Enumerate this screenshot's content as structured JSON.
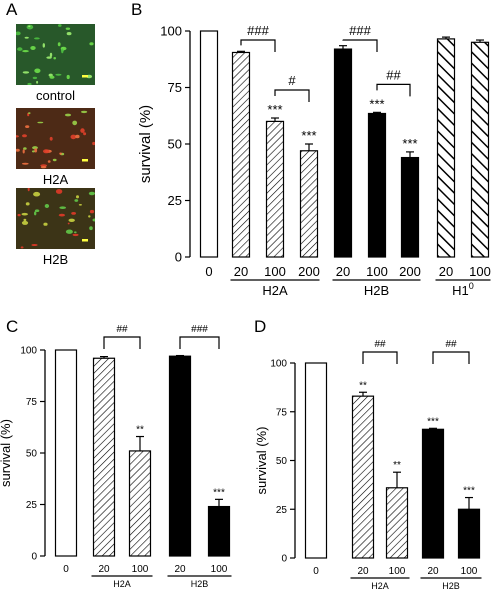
{
  "panel_letters": {
    "a": "A",
    "b": "B",
    "c": "C",
    "d": "D"
  },
  "micrographs": [
    {
      "label": "control",
      "tint": "#28582a"
    },
    {
      "label": "H2A",
      "tint": "#4d2a16"
    },
    {
      "label": "H2B",
      "tint": "#3c3417"
    }
  ],
  "colors": {
    "axis": "#000000",
    "open_bar": "#ffffff",
    "solid_bar": "#000000",
    "hatch": "#000000"
  },
  "chart_data": [
    {
      "panel": "B",
      "type": "bar",
      "ylabel": "survival (%)",
      "ylim": [
        0,
        100
      ],
      "yticks": [
        "0",
        "25",
        "50",
        "75",
        "100"
      ],
      "bars": [
        {
          "x_label": "0",
          "group": "",
          "value": 100,
          "error": 0,
          "style": "open",
          "star": ""
        },
        {
          "x_label": "20",
          "group": "H2A",
          "value": 90.5,
          "error": 0.5,
          "style": "hatch",
          "star": ""
        },
        {
          "x_label": "100",
          "group": "H2A",
          "value": 60,
          "error": 1.5,
          "style": "hatch",
          "star": "***"
        },
        {
          "x_label": "200",
          "group": "H2A",
          "value": 47,
          "error": 3,
          "style": "hatch",
          "star": "***"
        },
        {
          "x_label": "20",
          "group": "H2B",
          "value": 92,
          "error": 1.5,
          "style": "solid",
          "star": ""
        },
        {
          "x_label": "100",
          "group": "H2B",
          "value": 63.5,
          "error": 0.5,
          "style": "solid",
          "star": "***"
        },
        {
          "x_label": "200",
          "group": "H2B",
          "value": 44,
          "error": 2.5,
          "style": "solid",
          "star": "***"
        },
        {
          "x_label": "20",
          "group": "H1",
          "value": 96.5,
          "error": 0.8,
          "style": "wide",
          "star": ""
        },
        {
          "x_label": "100",
          "group": "H1",
          "value": 95,
          "error": 1,
          "style": "wide",
          "star": ""
        }
      ],
      "group_labels": [
        {
          "text": "H2A",
          "from": 1,
          "to": 3
        },
        {
          "text": "H2B",
          "from": 4,
          "to": 6
        },
        {
          "text": "H1",
          "sup": "0",
          "from": 7,
          "to": 8
        }
      ],
      "brackets": [
        {
          "from": 1,
          "to": 2,
          "label": "###",
          "level": 1
        },
        {
          "from": 2,
          "to": 3,
          "label": "#",
          "level": 2
        },
        {
          "from": 4,
          "to": 5,
          "label": "###",
          "level": 1
        },
        {
          "from": 5,
          "to": 6,
          "label": "##",
          "level": 2
        }
      ]
    },
    {
      "panel": "C",
      "type": "bar",
      "ylabel": "survival (%)",
      "ylim": [
        0,
        100
      ],
      "yticks": [
        "0",
        "25",
        "50",
        "75",
        "100"
      ],
      "bars": [
        {
          "x_label": "0",
          "group": "",
          "value": 100,
          "error": 0,
          "style": "open",
          "star": ""
        },
        {
          "x_label": "20",
          "group": "H2A",
          "value": 96,
          "error": 0.8,
          "style": "hatch",
          "star": ""
        },
        {
          "x_label": "100",
          "group": "H2A",
          "value": 51,
          "error": 7,
          "style": "hatch",
          "star": "**"
        },
        {
          "x_label": "20",
          "group": "H2B",
          "value": 97,
          "error": 0.3,
          "style": "solid",
          "star": ""
        },
        {
          "x_label": "100",
          "group": "H2B",
          "value": 24,
          "error": 3.5,
          "style": "solid",
          "star": "***"
        }
      ],
      "group_labels": [
        {
          "text": "H2A",
          "sup": "",
          "from": 1,
          "to": 2
        },
        {
          "text": "H2B",
          "sup": "",
          "from": 3,
          "to": 4
        }
      ],
      "brackets": [
        {
          "from": 1,
          "to": 2,
          "label": "##",
          "level": 1
        },
        {
          "from": 3,
          "to": 4,
          "label": "###",
          "level": 1
        }
      ]
    },
    {
      "panel": "D",
      "type": "bar",
      "ylabel": "survival (%)",
      "ylim": [
        0,
        100
      ],
      "yticks": [
        "0",
        "25",
        "50",
        "75",
        "100"
      ],
      "bars": [
        {
          "x_label": "0",
          "group": "",
          "value": 100,
          "error": 0,
          "style": "open",
          "star": ""
        },
        {
          "x_label": "20",
          "group": "H2A",
          "value": 83,
          "error": 2,
          "style": "hatch",
          "star": "**"
        },
        {
          "x_label": "100",
          "group": "H2A",
          "value": 36,
          "error": 8,
          "style": "hatch",
          "star": "**"
        },
        {
          "x_label": "20",
          "group": "H2B",
          "value": 66,
          "error": 0.5,
          "style": "solid",
          "star": "***"
        },
        {
          "x_label": "100",
          "group": "H2B",
          "value": 25,
          "error": 6,
          "style": "solid",
          "star": "***"
        }
      ],
      "group_labels": [
        {
          "text": "H2A",
          "sup": "",
          "from": 1,
          "to": 2
        },
        {
          "text": "H2B",
          "sup": "",
          "from": 3,
          "to": 4
        }
      ],
      "brackets": [
        {
          "from": 1,
          "to": 2,
          "label": "##",
          "level": 1
        },
        {
          "from": 3,
          "to": 4,
          "label": "##",
          "level": 1
        }
      ]
    }
  ]
}
